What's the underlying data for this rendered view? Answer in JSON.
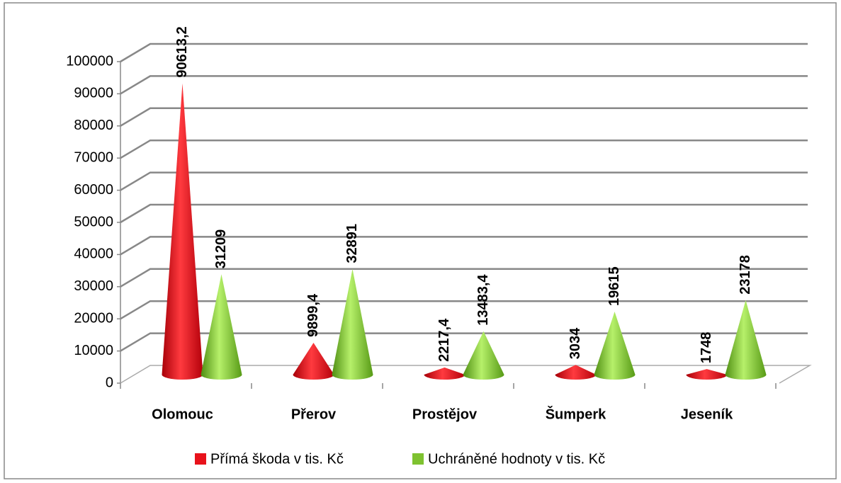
{
  "chart_data": {
    "type": "cone",
    "categories": [
      "Olomouc",
      "Přerov",
      "Prostějov",
      "Šumperk",
      "Jeseník"
    ],
    "series": [
      {
        "name": "Přímá škoda v tis. Kč",
        "color": "#e8121b",
        "values": [
          90613.2,
          9899.4,
          2217.4,
          3034,
          1748
        ],
        "value_labels": [
          "90613,2",
          "9899,4",
          "2217,4",
          "3034",
          "1748"
        ]
      },
      {
        "name": "Uchráněné hodnoty v tis. Kč",
        "color": "#7ec230",
        "values": [
          31209,
          32891,
          13483.4,
          19615,
          23178
        ],
        "value_labels": [
          "31209",
          "32891",
          "13483,4",
          "19615",
          "23178"
        ]
      }
    ],
    "ylim": [
      0,
      100000
    ],
    "yticks": [
      0,
      10000,
      20000,
      30000,
      40000,
      50000,
      60000,
      70000,
      80000,
      90000,
      100000
    ],
    "grid": true,
    "legend": "bottom"
  }
}
